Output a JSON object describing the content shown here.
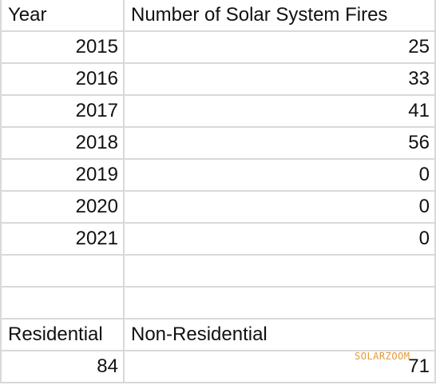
{
  "headers": {
    "year": "Year",
    "fires": "Number of Solar System Fires"
  },
  "rows": [
    {
      "year": "2015",
      "fires": "25"
    },
    {
      "year": "2016",
      "fires": "33"
    },
    {
      "year": "2017",
      "fires": "41"
    },
    {
      "year": "2018",
      "fires": "56"
    },
    {
      "year": "2019",
      "fires": "0"
    },
    {
      "year": "2020",
      "fires": "0"
    },
    {
      "year": "2021",
      "fires": "0"
    }
  ],
  "summary": {
    "residential_label": "Residential",
    "non_residential_label": "Non-Residential",
    "residential_value": "84",
    "non_residential_value": "71"
  },
  "watermark": "SOLARZOOM",
  "colors": {
    "gridline": "#d9d9d9",
    "watermark": "#e39a3b"
  }
}
